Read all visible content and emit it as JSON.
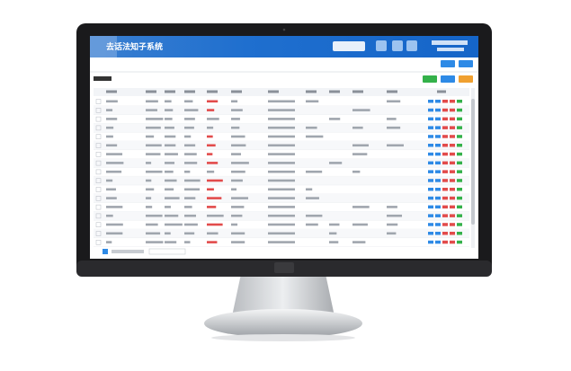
{
  "header": {
    "title": "去话法知子系统"
  }
}
